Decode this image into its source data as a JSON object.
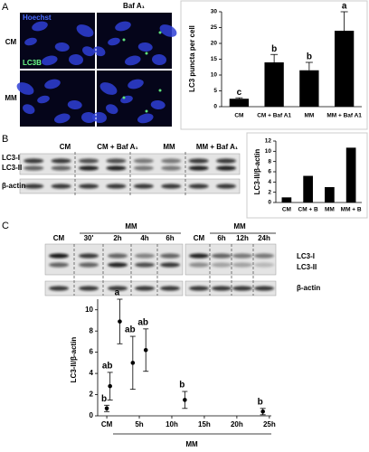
{
  "figure": {
    "panel_labels": [
      "A",
      "B",
      "C"
    ],
    "micrograph": {
      "column_header": "Baf A₁",
      "rows": [
        "CM",
        "MM"
      ],
      "stains": [
        "Hoechst",
        "LC3B"
      ]
    },
    "blot_b": {
      "lanes": [
        "CM",
        "CM + Baf A₁",
        "MM",
        "MM + Baf A₁"
      ],
      "bands": [
        "LC3-I",
        "LC3-II",
        "β-actin"
      ]
    },
    "blot_c": {
      "groups": [
        {
          "header": "MM",
          "lanes": [
            "CM",
            "30'",
            "2h",
            "4h",
            "6h"
          ]
        },
        {
          "header": "MM",
          "lanes": [
            "CM",
            "6h",
            "12h",
            "24h"
          ]
        }
      ],
      "bands": [
        "LC3-I",
        "LC3-II",
        "β-actin"
      ]
    }
  },
  "chart_data": [
    {
      "type": "bar",
      "ylabel": "LC3 puncta per cell",
      "categories": [
        "CM",
        "CM + Baf A1",
        "MM",
        "MM + Baf A1"
      ],
      "values": [
        2.5,
        14,
        11.5,
        24
      ],
      "errors": [
        0.3,
        2.5,
        2.5,
        6
      ],
      "annotations": [
        "c",
        "b",
        "b",
        "a"
      ],
      "color": "#000000",
      "ylim": [
        0,
        30
      ],
      "yticks": [
        0,
        5,
        10,
        15,
        20,
        25,
        30
      ]
    },
    {
      "type": "bar",
      "ylabel": "LC3-II/β-actin",
      "categories": [
        "CM",
        "CM + B",
        "MM",
        "MM + B"
      ],
      "values": [
        1,
        5.2,
        3,
        10.7
      ],
      "color": "#000000",
      "ylim": [
        0,
        12
      ],
      "yticks": [
        0,
        2,
        4,
        6,
        8,
        10,
        12
      ]
    },
    {
      "type": "scatter",
      "ylabel": "LC3-II/β-actin",
      "xlabel": "MM",
      "x": [
        0,
        0.5,
        2,
        4,
        6,
        12,
        24
      ],
      "values": [
        0.7,
        2.8,
        8.9,
        5,
        6.2,
        1.5,
        0.4
      ],
      "errors": [
        0.3,
        1.3,
        2.1,
        2.5,
        2,
        0.8,
        0.3
      ],
      "annotations": [
        "b",
        "ab",
        "a",
        "ab",
        "ab",
        "b",
        "b"
      ],
      "color": "#000000",
      "xlim": [
        -1.4,
        25.3
      ],
      "xticks": [
        {
          "value": 0,
          "label": "CM"
        },
        {
          "value": 5,
          "label": "5h"
        },
        {
          "value": 10,
          "label": "10h"
        },
        {
          "value": 15,
          "label": "15h"
        },
        {
          "value": 20,
          "label": "20h"
        },
        {
          "value": 25,
          "label": "25h"
        }
      ],
      "ylim": [
        0,
        11
      ],
      "yticks": [
        0,
        2,
        4,
        6,
        8,
        10
      ]
    }
  ]
}
